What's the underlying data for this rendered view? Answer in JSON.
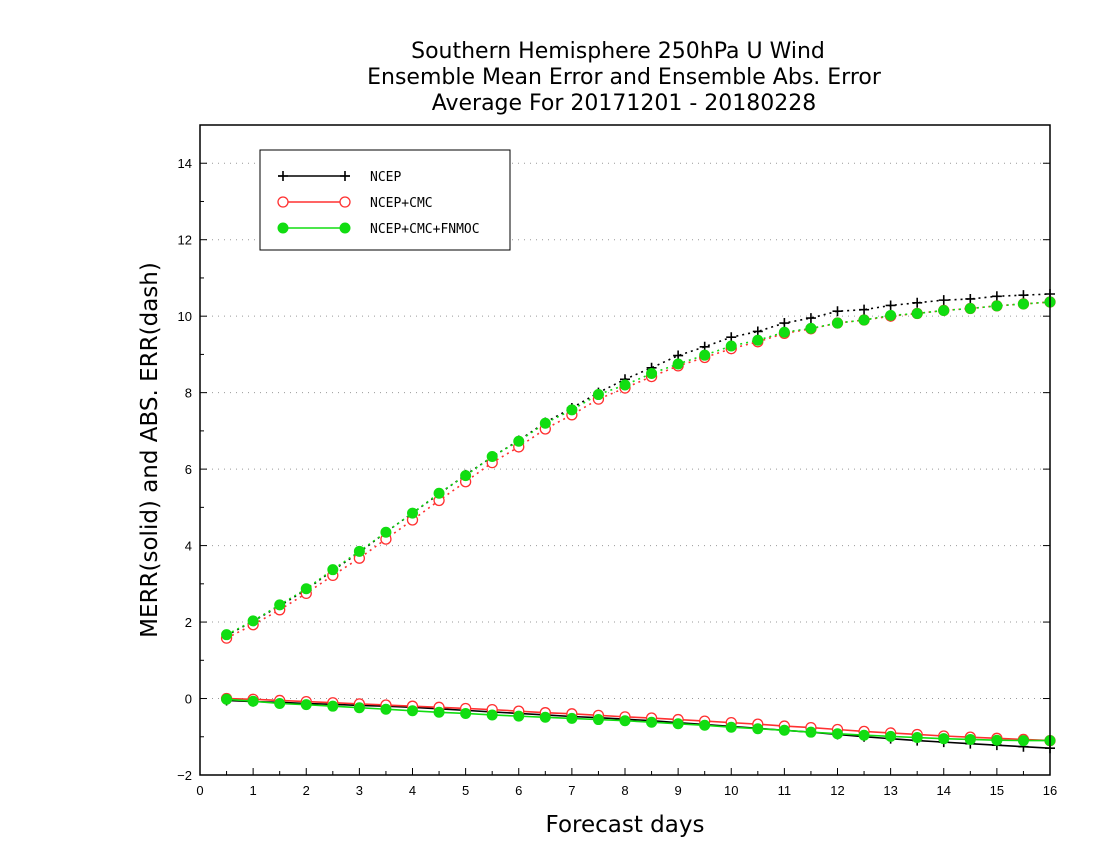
{
  "chart_data": {
    "type": "line",
    "title": [
      "Southern Hemisphere 250hPa U Wind",
      "Ensemble Mean Error and Ensemble Abs. Error",
      "Average For 20171201 - 20180228"
    ],
    "xlabel": "Forecast days",
    "ylabel": "MERR(solid) and ABS. ERR(dash)",
    "xlim": [
      0,
      16
    ],
    "ylim": [
      -2,
      15
    ],
    "xticks": [
      "0",
      "1",
      "2",
      "3",
      "4",
      "5",
      "6",
      "7",
      "8",
      "9",
      "10",
      "11",
      "12",
      "13",
      "14",
      "15",
      "16"
    ],
    "yticks": [
      "−2",
      "0",
      "2",
      "4",
      "6",
      "8",
      "10",
      "12",
      "14"
    ],
    "grid": "horizontal dotted",
    "legend_position": "top-left",
    "x": [
      0.5,
      1,
      1.5,
      2,
      2.5,
      3,
      3.5,
      4,
      4.5,
      5,
      5.5,
      6,
      6.5,
      7,
      7.5,
      8,
      8.5,
      9,
      9.5,
      10,
      10.5,
      11,
      11.5,
      12,
      12.5,
      13,
      13.5,
      14,
      14.5,
      15,
      15.5,
      16
    ],
    "series": [
      {
        "name": "NCEP",
        "color": "#000000",
        "marker": "plus",
        "merr": [
          -0.05,
          -0.08,
          -0.1,
          -0.13,
          -0.15,
          -0.18,
          -0.2,
          -0.23,
          -0.27,
          -0.31,
          -0.35,
          -0.39,
          -0.43,
          -0.47,
          -0.5,
          -0.54,
          -0.58,
          -0.63,
          -0.68,
          -0.73,
          -0.78,
          -0.83,
          -0.88,
          -0.94,
          -1.0,
          -1.05,
          -1.1,
          -1.14,
          -1.18,
          -1.22,
          -1.26,
          -1.3
        ],
        "abs_err": [
          1.65,
          2.02,
          2.42,
          2.85,
          3.35,
          3.82,
          4.35,
          4.85,
          5.35,
          5.85,
          6.32,
          6.75,
          7.22,
          7.6,
          8.0,
          8.35,
          8.65,
          8.97,
          9.2,
          9.45,
          9.6,
          9.82,
          9.95,
          10.13,
          10.17,
          10.28,
          10.35,
          10.42,
          10.45,
          10.52,
          10.55,
          10.58
        ]
      },
      {
        "name": "NCEP+CMC",
        "color": "#ff3030",
        "marker": "open-circle",
        "merr": [
          0.0,
          -0.02,
          -0.05,
          -0.08,
          -0.11,
          -0.14,
          -0.17,
          -0.2,
          -0.23,
          -0.26,
          -0.29,
          -0.33,
          -0.37,
          -0.4,
          -0.44,
          -0.48,
          -0.51,
          -0.55,
          -0.59,
          -0.63,
          -0.67,
          -0.72,
          -0.76,
          -0.81,
          -0.86,
          -0.9,
          -0.94,
          -0.98,
          -1.01,
          -1.04,
          -1.07,
          -1.1
        ],
        "abs_err": [
          1.58,
          1.93,
          2.32,
          2.75,
          3.22,
          3.67,
          4.17,
          4.67,
          5.18,
          5.67,
          6.17,
          6.58,
          7.05,
          7.42,
          7.83,
          8.12,
          8.42,
          8.7,
          8.92,
          9.15,
          9.33,
          9.55,
          9.67,
          9.82,
          9.9,
          10.0,
          10.07,
          10.15,
          10.2,
          10.27,
          10.32,
          10.37
        ]
      },
      {
        "name": "NCEP+CMC+FNMOC",
        "color": "#11dd11",
        "marker": "filled-circle",
        "merr": [
          -0.02,
          -0.07,
          -0.13,
          -0.16,
          -0.2,
          -0.24,
          -0.28,
          -0.32,
          -0.36,
          -0.39,
          -0.43,
          -0.46,
          -0.49,
          -0.52,
          -0.55,
          -0.58,
          -0.62,
          -0.66,
          -0.7,
          -0.75,
          -0.79,
          -0.83,
          -0.88,
          -0.92,
          -0.96,
          -0.99,
          -1.02,
          -1.05,
          -1.07,
          -1.09,
          -1.1,
          -1.1
        ],
        "abs_err": [
          1.67,
          2.03,
          2.45,
          2.87,
          3.37,
          3.85,
          4.35,
          4.85,
          5.37,
          5.83,
          6.33,
          6.73,
          7.2,
          7.55,
          7.95,
          8.2,
          8.5,
          8.75,
          8.98,
          9.22,
          9.37,
          9.58,
          9.68,
          9.82,
          9.9,
          10.02,
          10.07,
          10.15,
          10.2,
          10.27,
          10.32,
          10.37
        ]
      }
    ]
  }
}
